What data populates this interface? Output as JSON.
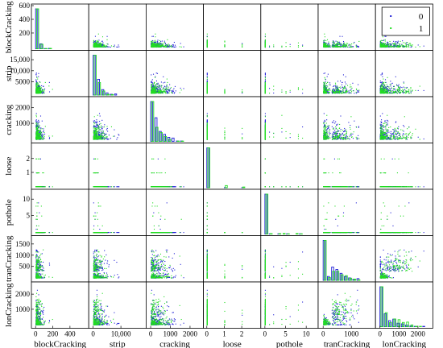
{
  "chart_data": {
    "type": "scatter",
    "subtype": "scatter-matrix",
    "title": "",
    "variables": [
      "blockCracking",
      "strip",
      "cracking",
      "loose",
      "pothole",
      "tranCracking",
      "lonCracking"
    ],
    "ranges": {
      "blockCracking": [
        -30,
        600
      ],
      "strip": [
        -1000,
        18500
      ],
      "cracking": [
        -150,
        2600
      ],
      "loose": [
        -0.1,
        3
      ],
      "pothole": [
        -0.6,
        12.5
      ],
      "tranCracking": [
        -120,
        1800
      ],
      "lonCracking": [
        -150,
        2700
      ]
    },
    "y_ticks": {
      "blockCracking": [
        {
          "v": 200,
          "label": "200"
        },
        {
          "v": 400,
          "label": "400"
        },
        {
          "v": 600,
          "label": "600"
        }
      ],
      "strip": [
        {
          "v": 5000,
          "label": "5000"
        },
        {
          "v": 10000,
          "label": "10,000"
        },
        {
          "v": 15000,
          "label": "15,000"
        }
      ],
      "cracking": [
        {
          "v": 1000,
          "label": "1000"
        },
        {
          "v": 2000,
          "label": "2000"
        }
      ],
      "loose": [
        {
          "v": 1,
          "label": "1"
        },
        {
          "v": 2,
          "label": "2"
        }
      ],
      "pothole": [
        {
          "v": 5,
          "label": "5"
        },
        {
          "v": 10,
          "label": "10"
        }
      ],
      "tranCracking": [
        {
          "v": 500,
          "label": "500"
        },
        {
          "v": 1000,
          "label": "1000"
        },
        {
          "v": 1500,
          "label": "1500"
        }
      ],
      "lonCracking": [
        {
          "v": 1000,
          "label": "1000"
        },
        {
          "v": 2000,
          "label": "2000"
        }
      ]
    },
    "x_ticks": {
      "blockCracking": [
        {
          "v": 0,
          "label": "0"
        },
        {
          "v": 200,
          "label": "200"
        },
        {
          "v": 400,
          "label": "400"
        }
      ],
      "strip": [
        {
          "v": 0,
          "label": "0"
        },
        {
          "v": 10000,
          "label": "10,000"
        }
      ],
      "cracking": [
        {
          "v": 0,
          "label": "0"
        },
        {
          "v": 1000,
          "label": "1000"
        },
        {
          "v": 2000,
          "label": "2000"
        }
      ],
      "loose": [
        {
          "v": 0,
          "label": "0"
        },
        {
          "v": 1,
          "label": "1"
        },
        {
          "v": 2,
          "label": "2"
        }
      ],
      "pothole": [
        {
          "v": 0,
          "label": "0"
        },
        {
          "v": 5,
          "label": "5"
        },
        {
          "v": 10,
          "label": "10"
        }
      ],
      "tranCracking": [
        {
          "v": 0,
          "label": "0"
        },
        {
          "v": 1000,
          "label": "1000"
        }
      ],
      "lonCracking": [
        {
          "v": 0,
          "label": "0"
        },
        {
          "v": 1000,
          "label": "1000"
        },
        {
          "v": 2000,
          "label": "2000"
        }
      ]
    },
    "series": [
      {
        "name": "0",
        "color": "#1f1fd6"
      },
      {
        "name": "1",
        "color": "#22dd22"
      }
    ],
    "legend": {
      "position": "top-right",
      "entries": [
        "0",
        "1"
      ]
    },
    "grid": false,
    "points_per_series": 240,
    "seed": 7
  }
}
